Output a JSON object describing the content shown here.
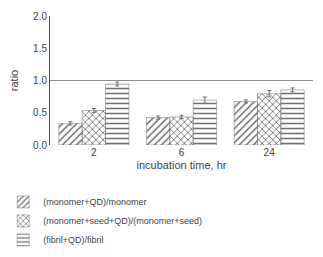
{
  "chart_data": {
    "type": "bar",
    "categories": [
      "2",
      "6",
      "24"
    ],
    "series": [
      {
        "name": "(monomer+QD)/monomer",
        "color": "#c8c8c8",
        "values": [
          0.335,
          0.425,
          0.675
        ],
        "errors": [
          0.025,
          0.025,
          0.025
        ]
      },
      {
        "name": "(monomer+seed+QD)/(monomer+seed)",
        "color": "#c0c0c0",
        "values": [
          0.535,
          0.435,
          0.795
        ],
        "errors": [
          0.03,
          0.025,
          0.05
        ]
      },
      {
        "name": "(fibril+QD)/fibril",
        "color": "#b0b0b0",
        "values": [
          0.945,
          0.695,
          0.855
        ],
        "errors": [
          0.03,
          0.05,
          0.03
        ]
      }
    ],
    "x_label": "incubation time, hr",
    "y_label": "ratio",
    "ylim": [
      0.0,
      2.0
    ],
    "yticks": [
      {
        "value": 0.0,
        "label": "0.0"
      },
      0.5,
      {
        "value": 1.0,
        "label": "1.0"
      },
      1.5,
      {
        "value": 2.0,
        "label": "2.0"
      }
    ],
    "reference_line": {
      "y": 1.0,
      "color": "#909090"
    },
    "grid": false,
    "legend": "bottom"
  }
}
